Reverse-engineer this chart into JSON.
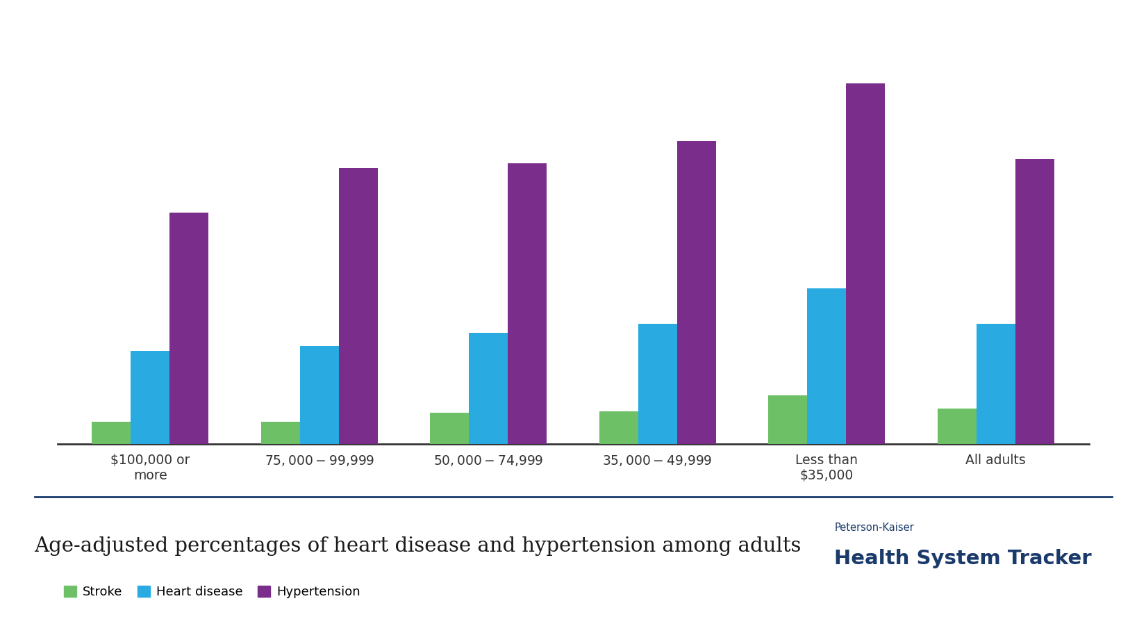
{
  "categories": [
    "$100,000 or\nmore",
    "$75,000-$99,999",
    "$50,000-$74,999",
    "$35,000-$49,999",
    "Less than\n$35,000",
    "All adults"
  ],
  "stroke": [
    2.5,
    2.5,
    3.5,
    3.7,
    5.5,
    4.0
  ],
  "heart_disease": [
    10.5,
    11.0,
    12.5,
    13.5,
    17.5,
    13.5
  ],
  "hypertension": [
    26.0,
    31.0,
    31.5,
    34.0,
    40.5,
    32.0
  ],
  "colors": {
    "stroke": "#6DC066",
    "heart_disease": "#29ABE2",
    "hypertension": "#7B2D8B"
  },
  "legend_labels": [
    "Stroke",
    "Heart disease",
    "Hypertension"
  ],
  "ylim": [
    0,
    45
  ],
  "bar_width": 0.23,
  "title": "Age-adjusted percentages of heart disease and hypertension among adults",
  "title_fontsize": 22,
  "bg_color": "#ffffff",
  "footer_text1": "Peterson-Kaiser",
  "footer_text2": "Health System Tracker",
  "footer_color": "#1a3a6b",
  "axis_color": "#333333"
}
